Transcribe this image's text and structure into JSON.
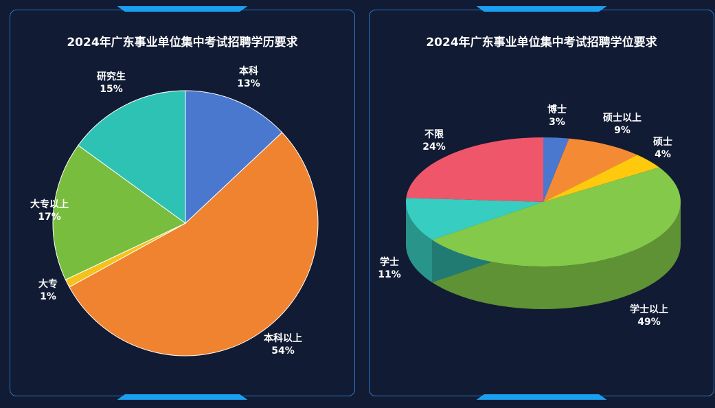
{
  "colors": {
    "background": "#111b33",
    "panel_border": "#2a78c8",
    "accent": "#1aa0f0"
  },
  "chart_data": [
    {
      "type": "pie",
      "title": "2024年广东事业单位集中考试招聘学历要求",
      "slices": [
        {
          "name": "本科",
          "value": 13,
          "pct": "13%",
          "color": "#4a78cf"
        },
        {
          "name": "本科以上",
          "value": 54,
          "pct": "54%",
          "color": "#f0832f"
        },
        {
          "name": "大专",
          "value": 1,
          "pct": "1%",
          "color": "#f5c21b"
        },
        {
          "name": "大专以上",
          "value": 17,
          "pct": "17%",
          "color": "#78bd3e"
        },
        {
          "name": "研究生",
          "value": 15,
          "pct": "15%",
          "color": "#2ec2b4"
        }
      ]
    },
    {
      "type": "pie",
      "title": "2024年广东事业单位集中考试招聘学位要求",
      "style": "3d",
      "slices": [
        {
          "name": "博士",
          "value": 3,
          "pct": "3%",
          "color": "#4a78cf"
        },
        {
          "name": "硕士以上",
          "value": 9,
          "pct": "9%",
          "color": "#f58a35"
        },
        {
          "name": "硕士",
          "value": 4,
          "pct": "4%",
          "color": "#ffc90e"
        },
        {
          "name": "学士以上",
          "value": 49,
          "pct": "49%",
          "color": "#84c94a"
        },
        {
          "name": "学士",
          "value": 11,
          "pct": "11%",
          "color": "#37cdc0"
        },
        {
          "name": "不限",
          "value": 24,
          "pct": "24%",
          "color": "#f0566a"
        }
      ]
    }
  ]
}
